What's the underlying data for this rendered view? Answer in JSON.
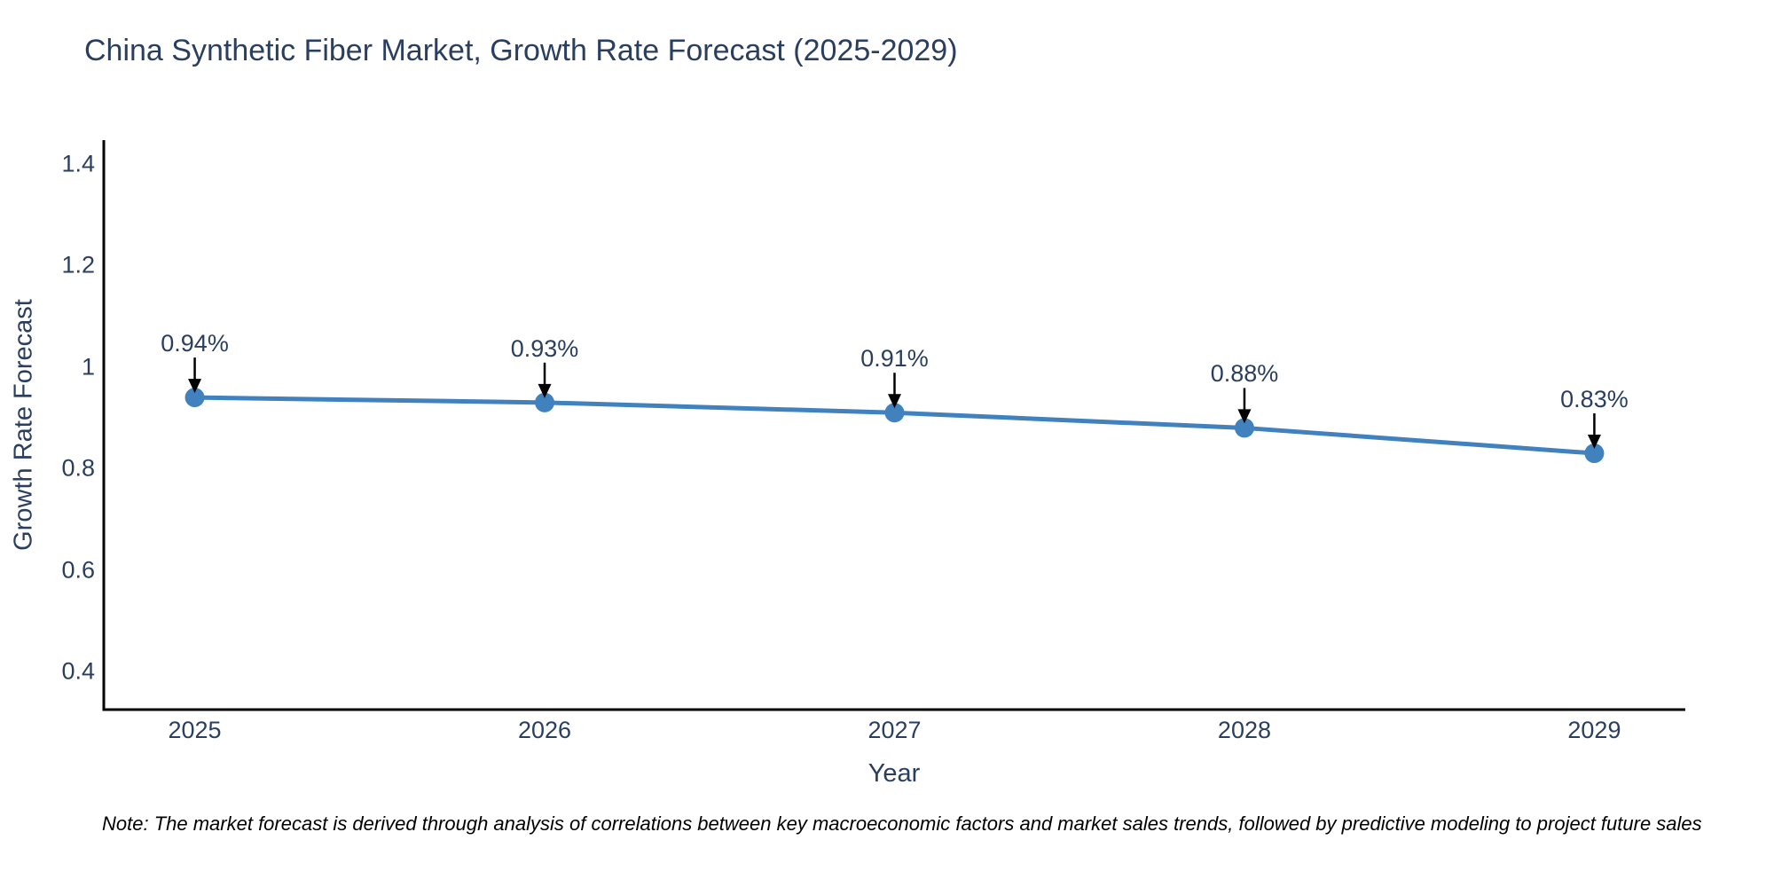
{
  "title": "China Synthetic Fiber Market, Growth Rate Forecast (2025-2029)",
  "note": "Note: The market forecast is derived through analysis of correlations between key macroeconomic factors and market sales trends, followed by predictive modeling to project future sales",
  "chart_data": {
    "type": "line",
    "title": "China Synthetic Fiber Market, Growth Rate Forecast (2025-2029)",
    "xlabel": "Year",
    "ylabel": "Growth Rate Forecast",
    "x": [
      2025,
      2026,
      2027,
      2028,
      2029
    ],
    "series": [
      {
        "name": "Growth Rate Forecast",
        "values": [
          0.94,
          0.93,
          0.91,
          0.88,
          0.83
        ]
      }
    ],
    "point_labels": [
      "0.94%",
      "0.93%",
      "0.91%",
      "0.88%",
      "0.83%"
    ],
    "xticks": [
      2025,
      2026,
      2027,
      2028,
      2029
    ],
    "xtick_labels": [
      "2025",
      "2026",
      "2027",
      "2028",
      "2029"
    ],
    "yticks": [
      0.4,
      0.6,
      0.8,
      1,
      1.2,
      1.4
    ],
    "ytick_labels": [
      "0.4",
      "0.6",
      "0.8",
      "1",
      "1.2",
      "1.4"
    ],
    "xlim": [
      2024.74,
      2029.26
    ],
    "ylim": [
      0.325,
      1.447
    ],
    "grid": false,
    "legend": "none",
    "colors": {
      "line": "#4182be",
      "marker": "#4182be",
      "axis": "#000000",
      "arrow": "#000000",
      "text": "#2a3f5f"
    }
  }
}
